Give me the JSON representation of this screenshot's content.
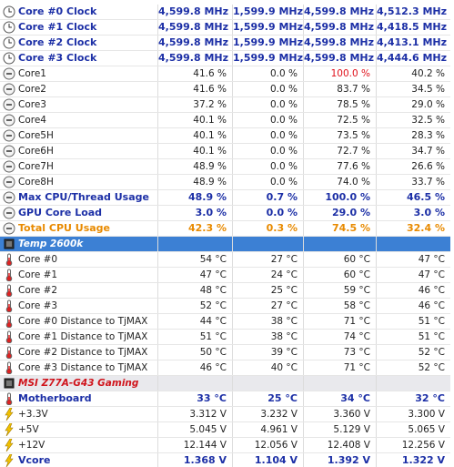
{
  "rows": [
    {
      "label": "Core #0 Clock",
      "values": [
        "4,599.8 MHz",
        "1,599.9 MHz",
        "4,599.8 MHz",
        "4,512.3 MHz"
      ],
      "style": "bold",
      "icon": "clock"
    },
    {
      "label": "Core #1 Clock",
      "values": [
        "4,599.8 MHz",
        "1,599.9 MHz",
        "4,599.8 MHz",
        "4,418.5 MHz"
      ],
      "style": "bold",
      "icon": "clock"
    },
    {
      "label": "Core #2 Clock",
      "values": [
        "4,599.8 MHz",
        "1,599.9 MHz",
        "4,599.8 MHz",
        "4,413.1 MHz"
      ],
      "style": "bold",
      "icon": "clock"
    },
    {
      "label": "Core #3 Clock",
      "values": [
        "4,599.8 MHz",
        "1,599.9 MHz",
        "4,599.8 MHz",
        "4,444.6 MHz"
      ],
      "style": "bold",
      "icon": "clock"
    },
    {
      "label": "Core1",
      "values": [
        "41.6 %",
        "0.0 %",
        "100.0 %",
        "40.2 %"
      ],
      "style": "normal",
      "icon": "minus",
      "alert_cell": 2
    },
    {
      "label": "Core2",
      "values": [
        "41.6 %",
        "0.0 %",
        "83.7 %",
        "34.5 %"
      ],
      "style": "normal",
      "icon": "minus"
    },
    {
      "label": "Core3",
      "values": [
        "37.2 %",
        "0.0 %",
        "78.5 %",
        "29.0 %"
      ],
      "style": "normal",
      "icon": "minus"
    },
    {
      "label": "Core4",
      "values": [
        "40.1 %",
        "0.0 %",
        "72.5 %",
        "32.5 %"
      ],
      "style": "normal",
      "icon": "minus"
    },
    {
      "label": "Core5H",
      "values": [
        "40.1 %",
        "0.0 %",
        "73.5 %",
        "28.3 %"
      ],
      "style": "normal",
      "icon": "minus"
    },
    {
      "label": "Core6H",
      "values": [
        "40.1 %",
        "0.0 %",
        "72.7 %",
        "34.7 %"
      ],
      "style": "normal",
      "icon": "minus"
    },
    {
      "label": "Core7H",
      "values": [
        "48.9 %",
        "0.0 %",
        "77.6 %",
        "26.6 %"
      ],
      "style": "normal",
      "icon": "minus"
    },
    {
      "label": "Core8H",
      "values": [
        "48.9 %",
        "0.0 %",
        "74.0 %",
        "33.7 %"
      ],
      "style": "normal",
      "icon": "minus"
    },
    {
      "label": "Max CPU/Thread Usage",
      "values": [
        "48.9 %",
        "0.7 %",
        "100.0 %",
        "46.5 %"
      ],
      "style": "bold",
      "icon": "minus"
    },
    {
      "label": "GPU Core Load",
      "values": [
        "3.0 %",
        "0.0 %",
        "29.0 %",
        "3.0 %"
      ],
      "style": "bold",
      "icon": "minus"
    },
    {
      "label": "Total CPU Usage",
      "values": [
        "42.3 %",
        "0.3 %",
        "74.5 %",
        "32.4 %"
      ],
      "style": "orange",
      "icon": "minus"
    },
    {
      "label": "Temp 2600k",
      "values": [],
      "style": "section-blue",
      "icon": "chip"
    },
    {
      "label": "Core #0",
      "values": [
        "54 °C",
        "27 °C",
        "60 °C",
        "47 °C"
      ],
      "style": "normal",
      "icon": "thermo"
    },
    {
      "label": "Core #1",
      "values": [
        "47 °C",
        "24 °C",
        "60 °C",
        "47 °C"
      ],
      "style": "normal",
      "icon": "thermo"
    },
    {
      "label": "Core #2",
      "values": [
        "48 °C",
        "25 °C",
        "59 °C",
        "46 °C"
      ],
      "style": "normal",
      "icon": "thermo"
    },
    {
      "label": "Core #3",
      "values": [
        "52 °C",
        "27 °C",
        "58 °C",
        "46 °C"
      ],
      "style": "normal",
      "icon": "thermo"
    },
    {
      "label": "Core #0 Distance to TjMAX",
      "values": [
        "44 °C",
        "38 °C",
        "71 °C",
        "51 °C"
      ],
      "style": "normal",
      "icon": "thermo"
    },
    {
      "label": "Core #1 Distance to TjMAX",
      "values": [
        "51 °C",
        "38 °C",
        "74 °C",
        "51 °C"
      ],
      "style": "normal",
      "icon": "thermo"
    },
    {
      "label": "Core #2 Distance to TjMAX",
      "values": [
        "50 °C",
        "39 °C",
        "73 °C",
        "52 °C"
      ],
      "style": "normal",
      "icon": "thermo"
    },
    {
      "label": "Core #3 Distance to TjMAX",
      "values": [
        "46 °C",
        "40 °C",
        "71 °C",
        "52 °C"
      ],
      "style": "normal",
      "icon": "thermo"
    },
    {
      "label": "MSI Z77A-G43 Gaming",
      "values": [],
      "style": "section-gray",
      "icon": "chip"
    },
    {
      "label": "Motherboard",
      "values": [
        "33 °C",
        "25 °C",
        "34 °C",
        "32 °C"
      ],
      "style": "bold",
      "icon": "thermo"
    },
    {
      "label": "+3.3V",
      "values": [
        "3.312 V",
        "3.232 V",
        "3.360 V",
        "3.300 V"
      ],
      "style": "normal",
      "icon": "bolt"
    },
    {
      "label": "+5V",
      "values": [
        "5.045 V",
        "4.961 V",
        "5.129 V",
        "5.065 V"
      ],
      "style": "normal",
      "icon": "bolt"
    },
    {
      "label": "+12V",
      "values": [
        "12.144 V",
        "12.056 V",
        "12.408 V",
        "12.256 V"
      ],
      "style": "normal",
      "icon": "bolt"
    },
    {
      "label": "Vcore",
      "values": [
        "1.368 V",
        "1.104 V",
        "1.392 V",
        "1.322 V"
      ],
      "style": "bold",
      "icon": "bolt"
    }
  ]
}
